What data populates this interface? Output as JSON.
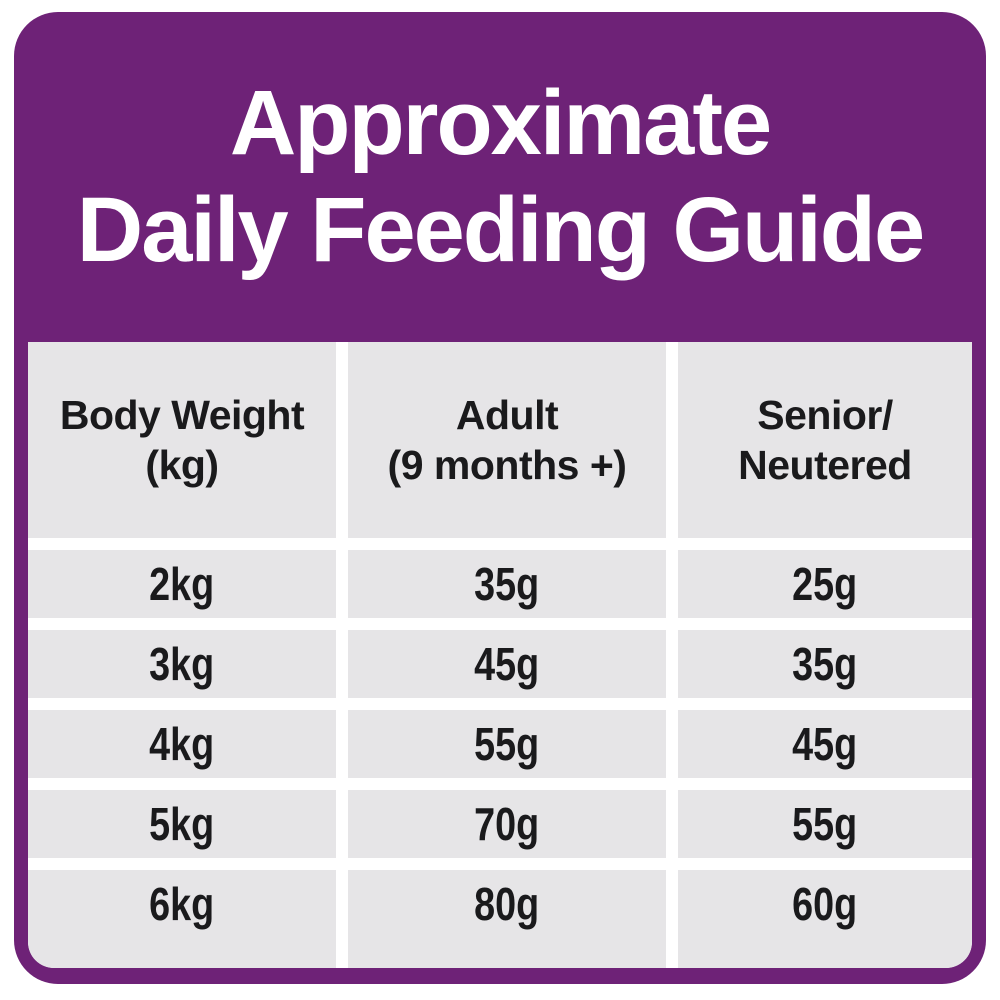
{
  "header": {
    "title_line1": "Approximate",
    "title_line2": "Daily Feeding Guide"
  },
  "table": {
    "columns": [
      {
        "line1": "Body Weight",
        "line2": "(kg)"
      },
      {
        "line1": "Adult",
        "line2": "(9 months +)"
      },
      {
        "line1": "Senior/",
        "line2": "Neutered"
      }
    ],
    "rows": [
      [
        "2kg",
        "35g",
        "25g"
      ],
      [
        "3kg",
        "45g",
        "35g"
      ],
      [
        "4kg",
        "55g",
        "45g"
      ],
      [
        "5kg",
        "70g",
        "55g"
      ],
      [
        "6kg",
        "80g",
        "60g"
      ]
    ]
  },
  "chart_data": {
    "type": "table",
    "title": "Approximate Daily Feeding Guide",
    "columns": [
      "Body Weight (kg)",
      "Adult (9 months +)",
      "Senior/Neutered"
    ],
    "rows": [
      [
        "2kg",
        "35g",
        "25g"
      ],
      [
        "3kg",
        "45g",
        "35g"
      ],
      [
        "4kg",
        "55g",
        "45g"
      ],
      [
        "5kg",
        "70g",
        "55g"
      ],
      [
        "6kg",
        "80g",
        "60g"
      ]
    ]
  },
  "colors": {
    "purple": "#6E2277",
    "cell-gray": "#E6E5E7",
    "text-dark": "#1A1A1C",
    "white": "#FFFFFF"
  }
}
